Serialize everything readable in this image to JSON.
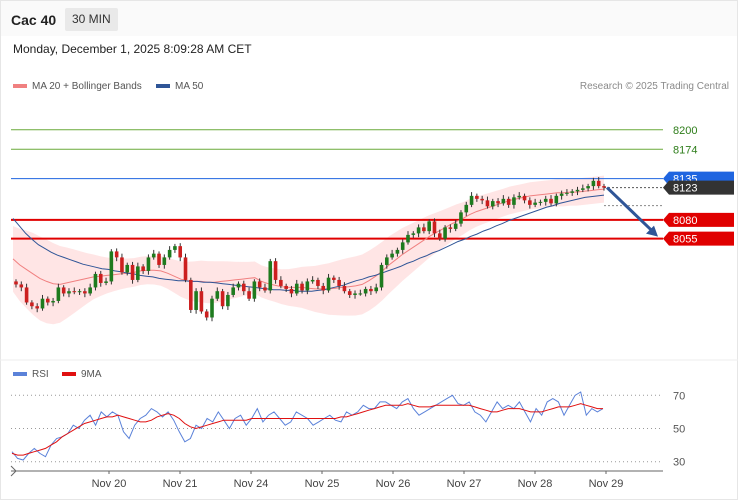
{
  "header": {
    "symbol": "Cac 40",
    "interval": "30 MIN"
  },
  "datetime": "Monday, December 1, 2025 8:09:28 AM CET",
  "legend": {
    "ma20": "MA 20 + Bollinger Bands",
    "ma50": "MA 50",
    "rsi": "RSI",
    "ma9": "9MA"
  },
  "copyright": "Research © 2025 Trading Central",
  "colors": {
    "ma20": "#f08080",
    "ma50": "#2f5597",
    "band": "#ffe0e0",
    "up": "#1e7b1e",
    "down": "#cc1f1f",
    "rsi": "#5b82d9",
    "rsi_ma": "#e01010",
    "level_green": "#6aaa3a",
    "support": "#e00000",
    "last": "#1f65e0"
  },
  "chart_data": [
    {
      "type": "candlestick",
      "title": "Cac 40",
      "x_labels": [
        "Nov 20",
        "Nov 21",
        "Nov 24",
        "Nov 25",
        "Nov 26",
        "Nov 27",
        "Nov 28",
        "Nov 29"
      ],
      "ylim": [
        7920,
        8245
      ],
      "levels": [
        {
          "value": 8200,
          "label": "8200",
          "style": "resistance"
        },
        {
          "value": 8174,
          "label": "8174",
          "style": "resistance"
        },
        {
          "value": 8135,
          "label": "8135",
          "style": "last"
        },
        {
          "value": 8123,
          "label": "8123",
          "style": "current"
        },
        {
          "value": 8080,
          "label": "8080",
          "style": "support"
        },
        {
          "value": 8055,
          "label": "8055",
          "style": "support"
        }
      ],
      "arrow": {
        "direction": "down",
        "from": 8123,
        "to": 8055
      },
      "close": [
        7994,
        7990,
        7970,
        7965,
        7962,
        7975,
        7970,
        7972,
        7990,
        7982,
        7985,
        7984,
        7985,
        7982,
        7990,
        8008,
        7996,
        7998,
        8038,
        8030,
        8010,
        8020,
        8000,
        8018,
        8012,
        8030,
        8035,
        8020,
        8030,
        8040,
        8045,
        8030,
        8000,
        7960,
        7985,
        7958,
        7950,
        7975,
        7985,
        7965,
        7980,
        7990,
        7995,
        7985,
        7975,
        7998,
        7990,
        7986,
        8025,
        8000,
        7992,
        7988,
        7982,
        7995,
        7986,
        7998,
        8000,
        7992,
        7986,
        8003,
        8000,
        7992,
        7985,
        7980,
        7982,
        7982,
        7988,
        7985,
        7990,
        8020,
        8030,
        8035,
        8040,
        8050,
        8060,
        8062,
        8070,
        8065,
        8078,
        8062,
        8055,
        8070,
        8068,
        8075,
        8090,
        8100,
        8112,
        8108,
        8106,
        8098,
        8105,
        8102,
        8108,
        8100,
        8110,
        8112,
        8106,
        8100,
        8103,
        8104,
        8108,
        8102,
        8112,
        8115,
        8116,
        8118,
        8120,
        8122,
        8125,
        8132,
        8125,
        8123
      ],
      "ma20": [
        8028,
        8020,
        8014,
        8008,
        8002,
        7998,
        7995,
        7994,
        7996,
        7998,
        8000,
        8002,
        8004,
        8005,
        8006,
        8007,
        8008,
        8009,
        8010,
        8012,
        8013,
        8013,
        8012,
        8009,
        8005,
        8001,
        7999,
        7998,
        7998,
        7997,
        7997,
        7998,
        7999,
        8000,
        8001,
        8002,
        8003,
        7998,
        7995,
        7993,
        7991,
        7990,
        7990,
        7990,
        7989,
        7988,
        7988,
        7988,
        7989,
        7990,
        7991,
        7992,
        7994,
        7999,
        8005,
        8012,
        8020,
        8027,
        8034,
        8040,
        8046,
        8052,
        8058,
        8063,
        8068,
        8073,
        8078,
        8082,
        8087,
        8091,
        8094,
        8097,
        8100,
        8103,
        8106,
        8108,
        8110,
        8112,
        8113,
        8114,
        8115,
        8116,
        8116,
        8117,
        8117,
        8118,
        8119,
        8120,
        8121
      ],
      "ma50": [
        8082,
        8072,
        8062,
        8054,
        8047,
        8042,
        8037,
        8033,
        8030,
        8027,
        8024,
        8021,
        8019,
        8017,
        8015,
        8014,
        8012,
        8011,
        8009,
        8008,
        8006,
        8005,
        8004,
        8002,
        8001,
        8000,
        7999,
        7999,
        7998,
        7998,
        7997,
        7997,
        7996,
        7995,
        7994,
        7993,
        7992,
        7991,
        7990,
        7989,
        7988,
        7987,
        7987,
        7986,
        7986,
        7985,
        7985,
        7985,
        7986,
        7987,
        7989,
        7991,
        7993,
        7996,
        7999,
        8001,
        8004,
        8006,
        8009,
        8012,
        8015,
        8018,
        8022,
        8025,
        8029,
        8032,
        8036,
        8039,
        8043,
        8047,
        8051,
        8054,
        8058,
        8061,
        8065,
        8068,
        8072,
        8075,
        8079,
        8082,
        8085,
        8088,
        8091,
        8094,
        8097,
        8099,
        8102,
        8104,
        8106,
        8108,
        8110,
        8111,
        8112,
        8113
      ]
    },
    {
      "type": "line",
      "title": "RSI",
      "ylim": [
        25,
        75
      ],
      "yticks": [
        70,
        50,
        30
      ],
      "series": [
        {
          "name": "RSI",
          "values": [
            36,
            32,
            31,
            35,
            38,
            35,
            33,
            40,
            44,
            45,
            47,
            52,
            50,
            55,
            58,
            52,
            60,
            57,
            60,
            58,
            48,
            44,
            52,
            56,
            58,
            62,
            60,
            57,
            60,
            55,
            48,
            42,
            44,
            52,
            50,
            56,
            54,
            60,
            55,
            50,
            56,
            58,
            52,
            56,
            62,
            54,
            58,
            60,
            56,
            52,
            54,
            60,
            58,
            56,
            52,
            54,
            56,
            58,
            55,
            54,
            60,
            58,
            60,
            64,
            62,
            62,
            66,
            66,
            64,
            62,
            66,
            68,
            62,
            58,
            60,
            62,
            64,
            66,
            68,
            70,
            65,
            64,
            66,
            60,
            58,
            54,
            60,
            66,
            62,
            64,
            62,
            66,
            60,
            54,
            62,
            58,
            66,
            68,
            66,
            58,
            64,
            70,
            72,
            58,
            62,
            60,
            62
          ]
        },
        {
          "name": "9MA",
          "values": [
            35,
            34,
            34,
            35,
            36,
            37,
            38,
            40,
            42,
            45,
            47,
            49,
            51,
            53,
            54,
            55,
            56,
            57,
            57,
            58,
            57,
            56,
            55,
            54,
            54,
            55,
            57,
            58,
            59,
            58,
            56,
            53,
            51,
            50,
            51,
            52,
            53,
            54,
            55,
            55,
            55,
            55,
            55,
            56,
            56,
            56,
            56,
            56,
            56,
            56,
            56,
            56,
            56,
            56,
            56,
            56,
            56,
            56,
            56,
            57,
            57,
            58,
            59,
            60,
            61,
            62,
            63,
            64,
            64,
            64,
            64,
            65,
            64,
            63,
            63,
            63,
            64,
            64,
            64,
            64,
            64,
            64,
            64,
            63,
            62,
            61,
            60,
            60,
            61,
            62,
            62,
            62,
            61,
            60,
            60,
            60,
            61,
            62,
            63,
            63,
            63,
            64,
            65,
            64,
            63,
            62,
            62
          ]
        }
      ]
    }
  ]
}
